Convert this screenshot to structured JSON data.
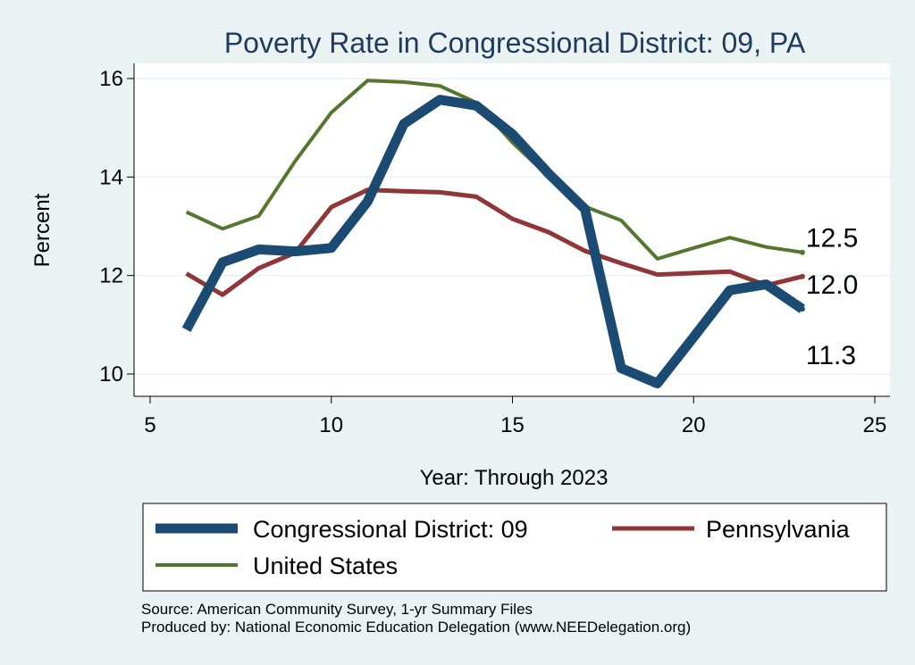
{
  "chart_data": {
    "type": "line",
    "title": "Poverty Rate in Congressional District:  09, PA",
    "xlabel": "Year: Through 2023",
    "ylabel": "Percent",
    "xlim": [
      5,
      25
    ],
    "ylim": [
      9.8,
      16.3
    ],
    "x_ticks": [
      5,
      10,
      15,
      20,
      25
    ],
    "y_ticks": [
      10,
      12,
      14,
      16
    ],
    "grid": true,
    "legend_position": "bottom",
    "series": [
      {
        "name": "Congressional District:  09",
        "color": "#1b4a73",
        "x": [
          6,
          7,
          8,
          9,
          10,
          11,
          12,
          13,
          14,
          15,
          16,
          17,
          18,
          19,
          20,
          21,
          22,
          23
        ],
        "values": [
          10.9,
          12.27,
          12.53,
          12.49,
          12.56,
          13.5,
          15.08,
          15.57,
          15.45,
          14.87,
          14.07,
          13.35,
          10.12,
          9.81,
          10.75,
          11.7,
          11.82,
          11.32
        ],
        "end_label": "11.3"
      },
      {
        "name": "Pennsylvania",
        "color": "#903639",
        "x": [
          6,
          7,
          8,
          9,
          10,
          11,
          12,
          13,
          14,
          15,
          16,
          17,
          18,
          19,
          20,
          21,
          22,
          23
        ],
        "values": [
          12.04,
          11.61,
          12.15,
          12.46,
          13.39,
          13.74,
          13.71,
          13.69,
          13.6,
          13.15,
          12.88,
          12.5,
          12.25,
          12.02,
          12.05,
          12.08,
          11.8,
          11.98
        ],
        "end_label": "12.0"
      },
      {
        "name": "United States",
        "color": "#55762e",
        "x": [
          6,
          7,
          8,
          9,
          10,
          11,
          12,
          13,
          14,
          15,
          16,
          17,
          18,
          19,
          20,
          21,
          22,
          23
        ],
        "values": [
          13.29,
          12.95,
          13.21,
          14.32,
          15.31,
          15.96,
          15.93,
          15.85,
          15.51,
          14.7,
          14.01,
          13.4,
          13.12,
          12.34,
          12.56,
          12.77,
          12.58,
          12.47
        ],
        "end_label": "12.5"
      }
    ]
  },
  "notes": {
    "source": "Source: American Community Survey, 1-yr Summary Files",
    "produced_by": "Produced by: National Economic Education Delegation (www.NEEDelegation.org)"
  }
}
